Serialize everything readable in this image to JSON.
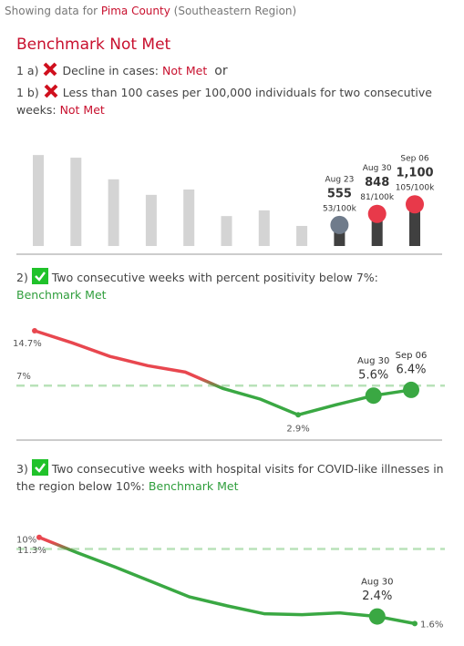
{
  "header": {
    "prefix": "Showing data for",
    "county": "Pima County",
    "region": "(Southeastern Region)"
  },
  "status": "Benchmark Not Met",
  "criteria": [
    {
      "number": "1 a)",
      "text": "Decline in cases:",
      "result": "Not Met",
      "connector": "or"
    },
    {
      "number": "1 b)",
      "text": "Less than 100 cases per 100,000 individuals for two consecutive weeks:",
      "result": "Not Met"
    },
    {
      "number": "2)",
      "text": "Two consecutive weeks with percent positivity below 7%:",
      "result": "Benchmark Met"
    },
    {
      "number": "3)",
      "text": "Two consecutive weeks with hospital visits for COVID-like illnesses in the region below 10%:",
      "result": "Benchmark Met"
    }
  ],
  "chart_data": [
    {
      "type": "bar",
      "categories": [
        null,
        null,
        null,
        null,
        null,
        null,
        null,
        null,
        "Aug 23",
        "Aug 30",
        "Sep 06"
      ],
      "values": [
        2400,
        2330,
        1760,
        1350,
        1490,
        790,
        940,
        530,
        555,
        848,
        1100
      ],
      "value_labels": [
        null,
        null,
        null,
        null,
        null,
        null,
        null,
        null,
        "555",
        "848",
        "1,100"
      ],
      "rate_labels": [
        null,
        null,
        null,
        null,
        null,
        null,
        null,
        null,
        "53/100k",
        "81/100k",
        "105/100k"
      ],
      "color": "#d4d4d4",
      "highlight_color": "#404040",
      "marker_colors": [
        null,
        null,
        null,
        null,
        null,
        null,
        null,
        null,
        "#6f7b8b",
        "#e8394a",
        "#e8394a"
      ],
      "ylim": [
        0,
        2500
      ]
    },
    {
      "type": "line",
      "categories": [
        null,
        null,
        null,
        null,
        null,
        null,
        null,
        null,
        null,
        "Aug 30",
        "Sep 06"
      ],
      "values": [
        14.7,
        13.0,
        11.1,
        9.8,
        8.9,
        6.6,
        5.1,
        2.9,
        4.3,
        5.6,
        6.4
      ],
      "value_labels": [
        "14.7%",
        null,
        null,
        null,
        null,
        null,
        null,
        "2.9%",
        null,
        "5.6%",
        "6.4%"
      ],
      "reference": {
        "value": 7,
        "label": "7%"
      },
      "above_color": "#e8474f",
      "below_color": "#3aa843",
      "reference_color": "#b9e2b9",
      "ylim": [
        0,
        17
      ]
    },
    {
      "type": "line",
      "categories": [
        null,
        null,
        null,
        null,
        null,
        null,
        null,
        null,
        null,
        "Aug 30",
        null
      ],
      "values": [
        11.3,
        9.6,
        8.0,
        6.3,
        4.6,
        3.6,
        2.7,
        2.6,
        2.8,
        2.4,
        1.6
      ],
      "value_labels": [
        "11.3%",
        null,
        null,
        null,
        null,
        null,
        null,
        null,
        null,
        "2.4%",
        "1.6%"
      ],
      "reference": {
        "value": 10,
        "label": "10%"
      },
      "above_color": "#e8474f",
      "below_color": "#3aa843",
      "reference_color": "#b9e2b9",
      "ylim": [
        0,
        12.3
      ]
    }
  ]
}
